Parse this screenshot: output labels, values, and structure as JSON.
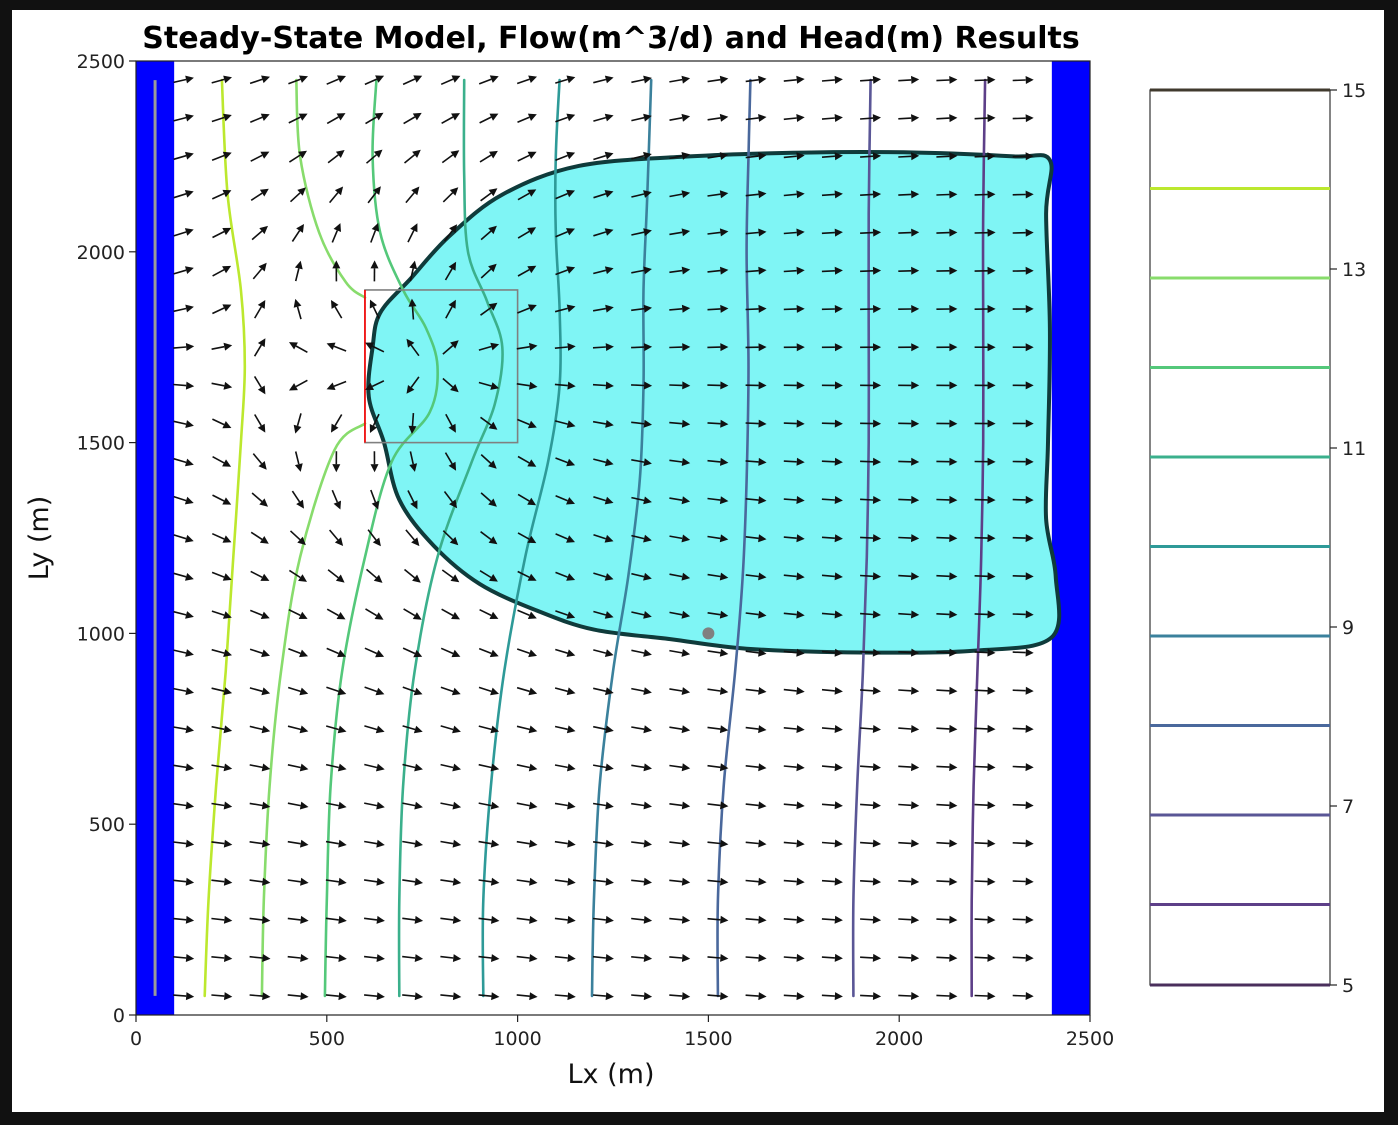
{
  "chart_data": {
    "type": "contour",
    "title": "Steady-State Model, Flow(m^3/d) and Head(m) Results",
    "xlabel": "Lx (m)",
    "ylabel": "Ly (m)",
    "xlim": [
      0,
      2500
    ],
    "ylim": [
      0,
      2500
    ],
    "xticks": [
      "0",
      "500",
      "1000",
      "1500",
      "2000",
      "2500"
    ],
    "yticks": [
      "0",
      "500",
      "1000",
      "1500",
      "2000",
      "2500"
    ],
    "grid": false,
    "colors": {
      "boundary": "#0000ff",
      "plume_fill": "#7ff5f5",
      "plume_outline": "#0f3b3b",
      "box_edge": "#808080",
      "box_left_edge": "#ff0000",
      "arrow": "#111111",
      "well_line": "#9a9a9a",
      "point": "#808080"
    },
    "boundaries": [
      {
        "name": "left",
        "x_range": [
          0,
          100
        ]
      },
      {
        "name": "right",
        "x_range": [
          2400,
          2500
        ]
      }
    ],
    "well_line": {
      "x": 50,
      "y_range": [
        50,
        2450
      ]
    },
    "source_box": {
      "x_range": [
        600,
        1000
      ],
      "y_range": [
        1500,
        1900
      ]
    },
    "observation_point": {
      "x": 1500,
      "y": 1000
    },
    "colorbar": {
      "ticks": [
        "5",
        "7",
        "9",
        "11",
        "13",
        "15"
      ],
      "range": [
        5,
        15
      ],
      "levels": [
        {
          "value": 15.0,
          "color": "#403a2e"
        },
        {
          "value": 13.9,
          "color": "#bce82e"
        },
        {
          "value": 12.9,
          "color": "#88dc6c"
        },
        {
          "value": 11.9,
          "color": "#54c87a"
        },
        {
          "value": 10.9,
          "color": "#3bb08c"
        },
        {
          "value": 9.9,
          "color": "#2e9a98"
        },
        {
          "value": 8.9,
          "color": "#3b819c"
        },
        {
          "value": 7.9,
          "color": "#4a689c"
        },
        {
          "value": 6.9,
          "color": "#5a5696"
        },
        {
          "value": 5.9,
          "color": "#5d3f88"
        },
        {
          "value": 5.0,
          "color": "#4a2f5c"
        }
      ]
    },
    "contours": [
      {
        "level": 13.9,
        "color": "#bce82e",
        "points": [
          [
            180,
            50
          ],
          [
            190,
            300
          ],
          [
            210,
            600
          ],
          [
            235,
            900
          ],
          [
            255,
            1200
          ],
          [
            275,
            1500
          ],
          [
            285,
            1700
          ],
          [
            275,
            1900
          ],
          [
            240,
            2150
          ],
          [
            225,
            2450
          ]
        ]
      },
      {
        "level": 12.9,
        "color": "#88dc6c",
        "points": [
          [
            330,
            50
          ],
          [
            335,
            300
          ],
          [
            350,
            600
          ],
          [
            380,
            900
          ],
          [
            430,
            1200
          ],
          [
            520,
            1480
          ],
          [
            600,
            1550
          ]
        ]
      },
      {
        "level": 12.9,
        "color": "#88dc6c",
        "points": [
          [
            600,
            1880
          ],
          [
            550,
            1920
          ],
          [
            480,
            2050
          ],
          [
            430,
            2250
          ],
          [
            420,
            2450
          ]
        ]
      },
      {
        "level": 11.9,
        "color": "#54c87a",
        "points": [
          [
            495,
            50
          ],
          [
            500,
            300
          ],
          [
            510,
            600
          ],
          [
            540,
            900
          ],
          [
            600,
            1200
          ],
          [
            670,
            1450
          ],
          [
            770,
            1580
          ],
          [
            790,
            1700
          ],
          [
            760,
            1800
          ],
          [
            700,
            1900
          ],
          [
            640,
            2050
          ],
          [
            620,
            2250
          ],
          [
            630,
            2450
          ]
        ]
      },
      {
        "level": 10.9,
        "color": "#3bb08c",
        "points": [
          [
            690,
            50
          ],
          [
            690,
            300
          ],
          [
            700,
            600
          ],
          [
            730,
            900
          ],
          [
            790,
            1200
          ],
          [
            880,
            1450
          ],
          [
            940,
            1600
          ],
          [
            960,
            1750
          ],
          [
            920,
            1870
          ],
          [
            870,
            2000
          ],
          [
            860,
            2200
          ],
          [
            860,
            2450
          ]
        ]
      },
      {
        "level": 9.9,
        "color": "#2e9a98",
        "points": [
          [
            910,
            50
          ],
          [
            910,
            300
          ],
          [
            930,
            600
          ],
          [
            965,
            900
          ],
          [
            1020,
            1200
          ],
          [
            1080,
            1450
          ],
          [
            1110,
            1650
          ],
          [
            1110,
            1850
          ],
          [
            1100,
            2050
          ],
          [
            1100,
            2250
          ],
          [
            1110,
            2450
          ]
        ]
      },
      {
        "level": 8.9,
        "color": "#3b819c",
        "points": [
          [
            1195,
            50
          ],
          [
            1200,
            300
          ],
          [
            1215,
            600
          ],
          [
            1250,
            900
          ],
          [
            1290,
            1150
          ],
          [
            1320,
            1400
          ],
          [
            1330,
            1650
          ],
          [
            1330,
            1900
          ],
          [
            1340,
            2150
          ],
          [
            1350,
            2450
          ]
        ]
      },
      {
        "level": 7.9,
        "color": "#4a689c",
        "points": [
          [
            1525,
            50
          ],
          [
            1525,
            300
          ],
          [
            1540,
            600
          ],
          [
            1570,
            900
          ],
          [
            1590,
            1150
          ],
          [
            1600,
            1400
          ],
          [
            1605,
            1700
          ],
          [
            1600,
            2000
          ],
          [
            1605,
            2250
          ],
          [
            1610,
            2450
          ]
        ]
      },
      {
        "level": 6.9,
        "color": "#5a5696",
        "points": [
          [
            1880,
            50
          ],
          [
            1880,
            300
          ],
          [
            1890,
            600
          ],
          [
            1905,
            900
          ],
          [
            1915,
            1200
          ],
          [
            1920,
            1500
          ],
          [
            1920,
            1800
          ],
          [
            1920,
            2100
          ],
          [
            1925,
            2450
          ]
        ]
      },
      {
        "level": 5.9,
        "color": "#5d3f88",
        "points": [
          [
            2190,
            50
          ],
          [
            2190,
            300
          ],
          [
            2195,
            600
          ],
          [
            2205,
            900
          ],
          [
            2215,
            1200
          ],
          [
            2220,
            1500
          ],
          [
            2220,
            1800
          ],
          [
            2220,
            2100
          ],
          [
            2225,
            2450
          ]
        ]
      }
    ],
    "plume_outline": [
      [
        640,
        1840
      ],
      [
        720,
        1930
      ],
      [
        820,
        2040
      ],
      [
        960,
        2150
      ],
      [
        1160,
        2225
      ],
      [
        1450,
        2250
      ],
      [
        1750,
        2260
      ],
      [
        2050,
        2260
      ],
      [
        2300,
        2250
      ],
      [
        2395,
        2240
      ],
      [
        2385,
        2100
      ],
      [
        2395,
        1800
      ],
      [
        2390,
        1500
      ],
      [
        2385,
        1300
      ],
      [
        2410,
        1150
      ],
      [
        2400,
        990
      ],
      [
        2200,
        955
      ],
      [
        1900,
        950
      ],
      [
        1600,
        960
      ],
      [
        1400,
        985
      ],
      [
        1200,
        1010
      ],
      [
        1050,
        1060
      ],
      [
        900,
        1130
      ],
      [
        780,
        1230
      ],
      [
        690,
        1350
      ],
      [
        650,
        1500
      ],
      [
        610,
        1620
      ],
      [
        620,
        1750
      ]
    ],
    "quiver": {
      "x_range": [
        125,
        2375
      ],
      "y_range": [
        50,
        2450
      ],
      "spacing": 100,
      "arrow_length_m": 55
    }
  }
}
